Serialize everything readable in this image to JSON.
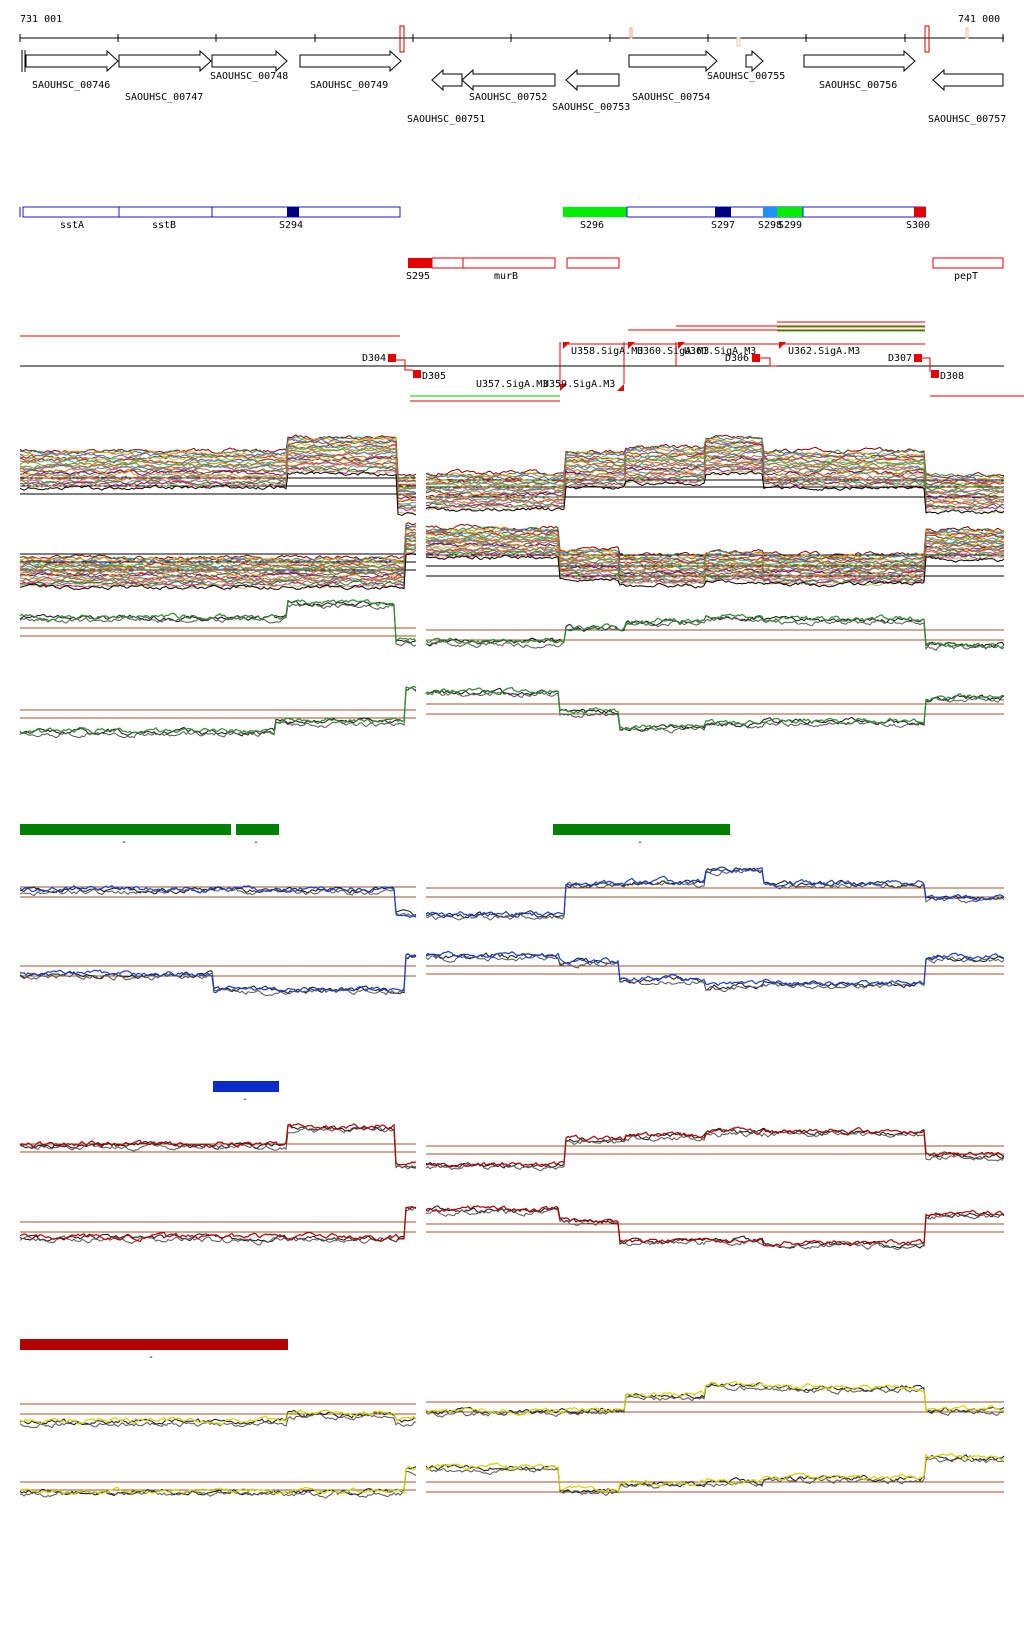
{
  "coords": {
    "start": "731 001",
    "end": "741 000"
  },
  "genes": [
    {
      "label": "SAOUHSC_00746",
      "strand": "+"
    },
    {
      "label": "SAOUHSC_00747",
      "strand": "+"
    },
    {
      "label": "SAOUHSC_00748",
      "strand": "+"
    },
    {
      "label": "SAOUHSC_00749",
      "strand": "+"
    },
    {
      "label": "SAOUHSC_00751",
      "strand": "-"
    },
    {
      "label": "SAOUHSC_00752",
      "strand": "-"
    },
    {
      "label": "SAOUHSC_00753",
      "strand": "-"
    },
    {
      "label": "SAOUHSC_00754",
      "strand": "+"
    },
    {
      "label": "SAOUHSC_00755",
      "strand": "+"
    },
    {
      "label": "SAOUHSC_00756",
      "strand": "+"
    },
    {
      "label": "SAOUHSC_00757",
      "strand": "-"
    }
  ],
  "segments_plus": [
    "sstA",
    "sstB",
    "S294",
    "S296",
    "S297",
    "S298",
    "S299",
    "S300"
  ],
  "segments_minus": [
    "S295",
    "murB",
    "pepT"
  ],
  "tu_labels_plus": [
    "D304",
    "U358.SigA.M3",
    "U360.SigA.M3",
    "U361.SigA.M3",
    "D306",
    "U362.SigA.M3",
    "D307"
  ],
  "tu_labels_minus": [
    "D305",
    "U357.SigA.M3",
    "U359.SigA.M3",
    "D308"
  ],
  "condition_marks": [
    "-",
    "-",
    "-",
    "-",
    "-"
  ],
  "colors": {
    "gene_outline": "#000000",
    "segment_outline": "#1a1acc",
    "segment_dark": "#000080",
    "segment_green": "#00ee00",
    "segment_light": "#1e90ff",
    "minus_red": "#e60000",
    "ref_line": "#a0522d",
    "block_green": "#008000",
    "block_blue": "#0a2dc8",
    "block_darkred": "#b30000",
    "trace_green": "#2e8b2e",
    "trace_blue": "#1a3fcf",
    "trace_red": "#b00000",
    "trace_yellow": "#d4d400",
    "trace_black": "#111111"
  }
}
